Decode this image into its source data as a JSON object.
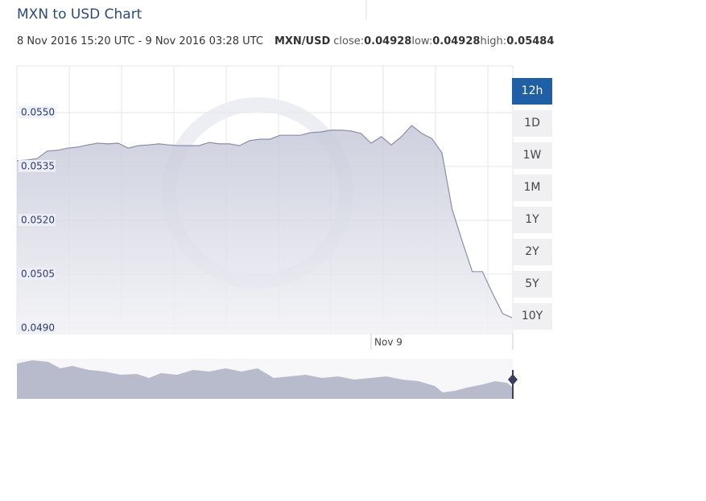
{
  "chart_data": {
    "type": "area",
    "title": "MXN to USD Chart",
    "range_text": "8 Nov 2016 15:20 UTC - 9 Nov 2016 03:28 UTC",
    "pair": "MXN/USD",
    "stats": [
      {
        "label": "close:",
        "value": 0.04928
      },
      {
        "label": "low:",
        "value": 0.04928
      },
      {
        "label": "high:",
        "value": 0.05484
      }
    ],
    "buttons": [
      "12h",
      "1D",
      "1W",
      "1M",
      "1Y",
      "2Y",
      "5Y",
      "10Y"
    ],
    "active_button": "12h",
    "categories": [
      null,
      null,
      null,
      null,
      null,
      null,
      null,
      null,
      null,
      null,
      null,
      null,
      null,
      null,
      null,
      null,
      null,
      null,
      null,
      null,
      null,
      null,
      null,
      null,
      null,
      null,
      null,
      null,
      null,
      null,
      null,
      null,
      null,
      null,
      null,
      "Nov 9",
      null,
      null,
      null,
      null,
      null,
      null,
      null,
      null,
      null,
      null,
      null,
      null,
      null,
      null
    ],
    "values": [
      0.05366,
      0.05368,
      0.05372,
      0.05393,
      0.05395,
      0.05401,
      0.05404,
      0.0541,
      0.05415,
      0.05413,
      0.05415,
      0.05401,
      0.05408,
      0.0541,
      0.05413,
      0.0541,
      0.05408,
      0.05408,
      0.05408,
      0.05417,
      0.05413,
      0.05413,
      0.05408,
      0.05422,
      0.05426,
      0.05426,
      0.05437,
      0.05437,
      0.05437,
      0.05444,
      0.05446,
      0.05451,
      0.05451,
      0.05449,
      0.05442,
      0.05415,
      0.05433,
      0.0541,
      0.05433,
      0.05464,
      0.05442,
      0.05428,
      0.05388,
      0.05231,
      0.05142,
      0.05057,
      0.05057,
      0.04996,
      0.0494,
      0.04928
    ],
    "color": "#8a8ea8",
    "ylim": [
      0.04884,
      0.0563
    ],
    "yticks": [
      {
        "value": 0.049,
        "label": "0.0490"
      },
      {
        "value": 0.0505,
        "label": "0.0505"
      },
      {
        "value": 0.052,
        "label": "0.0520"
      },
      {
        "value": 0.0535,
        "label": "0.0535"
      },
      {
        "value": 0.055,
        "label": "0.0550"
      }
    ],
    "grid": true
  }
}
